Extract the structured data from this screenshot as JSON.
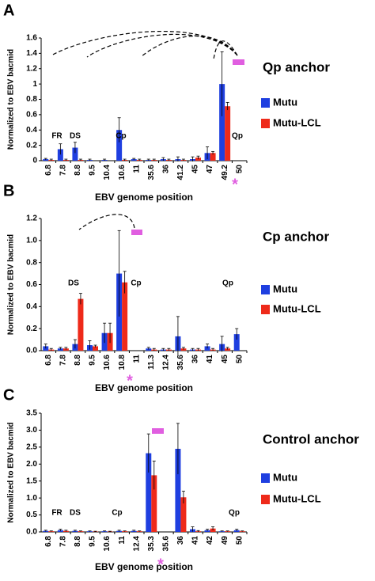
{
  "chart_data": [
    {
      "type": "bar",
      "panel": "A",
      "title": "Qp anchor",
      "ylabel": "Normalized to EBV bacmid",
      "xlabel": "EBV genome position",
      "categories": [
        "6.8",
        "7.8",
        "8.8",
        "9.5",
        "10.4",
        "10.6",
        "11",
        "35.6",
        "36",
        "41.2",
        "45",
        "47",
        "49.2",
        "50"
      ],
      "series": [
        {
          "name": "Mutu",
          "color": "#1f3fe0",
          "values": [
            0.02,
            0.15,
            0.17,
            0.01,
            0.01,
            0.4,
            0.02,
            0.01,
            0.02,
            0.02,
            0.02,
            0.1,
            1.0,
            null
          ],
          "errors": [
            0.01,
            0.07,
            0.07,
            0.01,
            0.01,
            0.16,
            0.01,
            0.01,
            0.02,
            0.03,
            0.03,
            0.08,
            0.42,
            null
          ]
        },
        {
          "name": "Mutu-LCL",
          "color": "#ee2a1a",
          "values": [
            0.01,
            0.01,
            0.01,
            0.0,
            0.0,
            0.01,
            0.01,
            0.01,
            0.01,
            0.01,
            0.04,
            0.1,
            0.71,
            null
          ],
          "errors": [
            0.01,
            0.01,
            0.01,
            0.0,
            0.0,
            0.01,
            0.01,
            0.01,
            0.01,
            0.01,
            0.02,
            0.02,
            0.05,
            null
          ]
        }
      ],
      "ylim": [
        0,
        1.6
      ],
      "yticks": [
        0,
        0.2,
        0.4,
        0.6,
        0.8,
        1,
        1.2,
        1.4,
        1.6
      ],
      "annotations": [
        "FR",
        "DS",
        "Cp",
        "Qp",
        "*"
      ]
    },
    {
      "type": "bar",
      "panel": "B",
      "title": "Cp anchor",
      "ylabel": "Normalized to EBV bacmid",
      "xlabel": "EBV genome position",
      "categories": [
        "6.8",
        "7.8",
        "8.8",
        "9.5",
        "10.6",
        "10.8",
        "11",
        "11.3",
        "12.4",
        "35.6",
        "36",
        "41",
        "45",
        "50"
      ],
      "series": [
        {
          "name": "Mutu",
          "color": "#1f3fe0",
          "values": [
            0.04,
            0.02,
            0.06,
            0.05,
            0.16,
            0.7,
            null,
            0.02,
            0.01,
            0.13,
            0.01,
            0.04,
            0.06,
            0.15
          ],
          "errors": [
            0.02,
            0.01,
            0.04,
            0.04,
            0.09,
            0.39,
            null,
            0.01,
            0.01,
            0.18,
            0.01,
            0.02,
            0.07,
            0.05
          ]
        },
        {
          "name": "Mutu-LCL",
          "color": "#ee2a1a",
          "values": [
            0.01,
            0.02,
            0.47,
            0.04,
            0.16,
            0.62,
            null,
            0.01,
            0.01,
            0.02,
            0.01,
            0.01,
            0.02,
            0.0
          ],
          "errors": [
            0.01,
            0.01,
            0.05,
            0.01,
            0.09,
            0.1,
            null,
            0.01,
            0.01,
            0.01,
            0.01,
            0.01,
            0.01,
            0.0
          ]
        }
      ],
      "ylim": [
        0,
        1.2
      ],
      "yticks": [
        {
          "value": 0,
          "label": "0.0"
        },
        0.2,
        0.4,
        0.6,
        0.8,
        {
          "value": 1,
          "label": "1.0"
        },
        1.2
      ],
      "annotations": [
        "DS",
        "Cp",
        "Qp",
        "*"
      ]
    },
    {
      "type": "bar",
      "panel": "C",
      "title": "Control anchor",
      "ylabel": "Normalized to EBV bacmid",
      "xlabel": "EBV genome position",
      "categories": [
        "6.8",
        "7.8",
        "8.8",
        "9.5",
        "10.6",
        "11",
        "12.4",
        "35.3",
        "35.6",
        "36",
        "41",
        "42",
        "49",
        "50"
      ],
      "series": [
        {
          "name": "Mutu",
          "color": "#1f3fe0",
          "values": [
            0.03,
            0.05,
            0.03,
            0.02,
            0.02,
            0.03,
            0.03,
            2.32,
            null,
            2.45,
            0.08,
            0.05,
            0.02,
            0.05
          ],
          "errors": [
            0.02,
            0.03,
            0.02,
            0.01,
            0.01,
            0.02,
            0.02,
            0.57,
            null,
            0.75,
            0.07,
            0.03,
            0.01,
            0.03
          ]
        },
        {
          "name": "Mutu-LCL",
          "color": "#ee2a1a",
          "values": [
            0.02,
            0.03,
            0.02,
            0.01,
            0.01,
            0.02,
            0.02,
            1.67,
            null,
            1.02,
            0.02,
            0.1,
            0.02,
            0.02
          ],
          "errors": [
            0.01,
            0.02,
            0.01,
            0.01,
            0.01,
            0.01,
            0.01,
            0.42,
            null,
            0.18,
            0.02,
            0.05,
            0.01,
            0.01
          ]
        }
      ],
      "ylim": [
        0,
        3.5
      ],
      "yticks": [
        {
          "value": 0,
          "label": "0.0"
        },
        0.5,
        {
          "value": 1,
          "label": "1.0"
        },
        1.5,
        {
          "value": 2,
          "label": "2.0"
        },
        2.5,
        {
          "value": 3,
          "label": "3.0"
        },
        3.5
      ],
      "annotations": [
        "FR",
        "DS",
        "Cp",
        "Qp",
        "*"
      ]
    }
  ]
}
